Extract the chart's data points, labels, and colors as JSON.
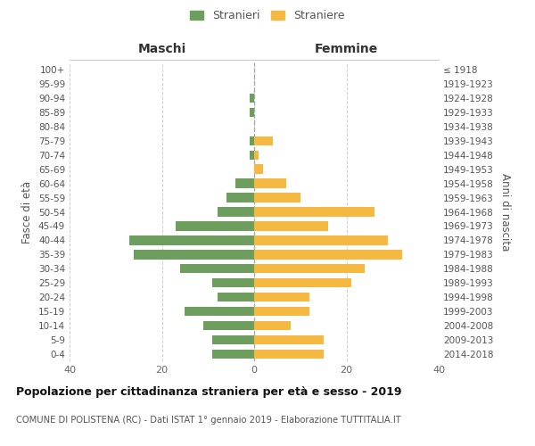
{
  "age_groups": [
    "0-4",
    "5-9",
    "10-14",
    "15-19",
    "20-24",
    "25-29",
    "30-34",
    "35-39",
    "40-44",
    "45-49",
    "50-54",
    "55-59",
    "60-64",
    "65-69",
    "70-74",
    "75-79",
    "80-84",
    "85-89",
    "90-94",
    "95-99",
    "100+"
  ],
  "birth_years": [
    "2014-2018",
    "2009-2013",
    "2004-2008",
    "1999-2003",
    "1994-1998",
    "1989-1993",
    "1984-1988",
    "1979-1983",
    "1974-1978",
    "1969-1973",
    "1964-1968",
    "1959-1963",
    "1954-1958",
    "1949-1953",
    "1944-1948",
    "1939-1943",
    "1934-1938",
    "1929-1933",
    "1924-1928",
    "1919-1923",
    "≤ 1918"
  ],
  "maschi": [
    9,
    9,
    11,
    15,
    8,
    9,
    16,
    26,
    27,
    17,
    8,
    6,
    4,
    0,
    1,
    1,
    0,
    1,
    1,
    0,
    0
  ],
  "femmine": [
    15,
    15,
    8,
    12,
    12,
    21,
    24,
    32,
    29,
    16,
    26,
    10,
    7,
    2,
    1,
    4,
    0,
    0,
    0,
    0,
    0
  ],
  "color_maschi": "#6e9e5e",
  "color_femmine": "#f5b942",
  "xlim": 40,
  "title": "Popolazione per cittadinanza straniera per età e sesso - 2019",
  "subtitle": "COMUNE DI POLISTENA (RC) - Dati ISTAT 1° gennaio 2019 - Elaborazione TUTTITALIA.IT",
  "ylabel_left": "Fasce di età",
  "ylabel_right": "Anni di nascita",
  "label_maschi": "Maschi",
  "label_femmine": "Femmine",
  "legend_stranieri": "Stranieri",
  "legend_straniere": "Straniere",
  "bg_color": "#ffffff",
  "grid_color": "#d0d0d0"
}
